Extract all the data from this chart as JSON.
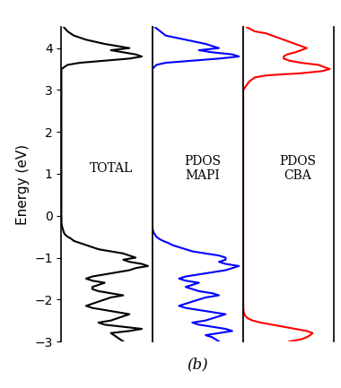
{
  "energy_range": [
    -3,
    4.5
  ],
  "yticks": [
    -3,
    -2,
    -1,
    0,
    1,
    2,
    3,
    4
  ],
  "ylabel": "Energy (eV)",
  "panel_labels": [
    "TOTAL",
    "PDOS\nMAPI",
    "PDOS\nCBA"
  ],
  "subtitle": "(b)",
  "colors": [
    "#000000",
    "#0000ff",
    "#ff0000"
  ],
  "linewidth": 1.5,
  "total_dos_energy": [
    -3.0,
    -2.9,
    -2.8,
    -2.75,
    -2.7,
    -2.65,
    -2.6,
    -2.55,
    -2.5,
    -2.45,
    -2.4,
    -2.35,
    -2.3,
    -2.25,
    -2.2,
    -2.15,
    -2.1,
    -2.05,
    -2.0,
    -1.95,
    -1.9,
    -1.85,
    -1.8,
    -1.75,
    -1.7,
    -1.65,
    -1.6,
    -1.55,
    -1.5,
    -1.45,
    -1.4,
    -1.35,
    -1.3,
    -1.25,
    -1.2,
    -1.15,
    -1.1,
    -1.05,
    -1.0,
    -0.95,
    -0.9,
    -0.85,
    -0.8,
    -0.75,
    -0.7,
    -0.65,
    -0.6,
    -0.55,
    -0.5,
    -0.45,
    -0.4,
    -0.35,
    -0.3,
    -0.25,
    -0.2,
    -0.15,
    -0.1,
    -0.05,
    0.0,
    0.05,
    0.1,
    0.15,
    0.2,
    0.5,
    1.0,
    1.5,
    2.0,
    2.5,
    3.0,
    3.5,
    3.6,
    3.65,
    3.7,
    3.75,
    3.8,
    3.85,
    3.9,
    3.95,
    4.0,
    4.05,
    4.1,
    4.2,
    4.3,
    4.4,
    4.5
  ],
  "total_dos_values": [
    5.0,
    4.5,
    4.0,
    5.5,
    6.5,
    5.0,
    3.5,
    3.0,
    4.0,
    4.5,
    5.0,
    5.5,
    4.5,
    3.5,
    2.5,
    2.0,
    2.5,
    3.0,
    3.5,
    4.0,
    5.0,
    4.0,
    3.0,
    2.5,
    2.5,
    3.0,
    3.5,
    2.5,
    2.0,
    2.5,
    3.5,
    4.5,
    5.5,
    6.0,
    7.0,
    6.5,
    5.5,
    5.0,
    6.0,
    5.5,
    5.0,
    4.0,
    3.0,
    2.5,
    2.0,
    1.5,
    1.0,
    0.8,
    0.5,
    0.3,
    0.2,
    0.15,
    0.1,
    0.05,
    0.02,
    0.01,
    0.01,
    0.01,
    0.0,
    0.0,
    0.0,
    0.0,
    0.0,
    0.0,
    0.0,
    0.0,
    0.0,
    0.0,
    0.0,
    0.0,
    0.5,
    1.5,
    3.5,
    5.5,
    6.5,
    6.0,
    5.0,
    4.0,
    5.5,
    4.5,
    3.5,
    2.0,
    1.0,
    0.5,
    0.2
  ],
  "mapi_dos_energy": [
    -3.0,
    -2.9,
    -2.85,
    -2.8,
    -2.75,
    -2.7,
    -2.65,
    -2.6,
    -2.55,
    -2.5,
    -2.45,
    -2.4,
    -2.35,
    -2.3,
    -2.25,
    -2.2,
    -2.15,
    -2.1,
    -2.05,
    -2.0,
    -1.95,
    -1.9,
    -1.85,
    -1.8,
    -1.75,
    -1.7,
    -1.65,
    -1.6,
    -1.55,
    -1.5,
    -1.45,
    -1.4,
    -1.35,
    -1.3,
    -1.25,
    -1.2,
    -1.15,
    -1.1,
    -1.05,
    -1.0,
    -0.95,
    -0.9,
    -0.85,
    -0.8,
    -0.75,
    -0.7,
    -0.65,
    -0.6,
    -0.55,
    -0.5,
    -0.45,
    -0.4,
    -0.35,
    -0.3,
    -0.25,
    -0.2,
    -0.15,
    -0.1,
    -0.05,
    0.0,
    0.05,
    0.1,
    0.5,
    1.0,
    1.5,
    2.0,
    2.5,
    3.0,
    3.5,
    3.6,
    3.65,
    3.7,
    3.75,
    3.8,
    3.85,
    3.9,
    3.95,
    4.0,
    4.1,
    4.2,
    4.3,
    4.5
  ],
  "mapi_dos_values": [
    5.0,
    4.5,
    4.0,
    5.0,
    6.0,
    5.5,
    4.5,
    3.5,
    3.0,
    4.0,
    4.5,
    5.0,
    5.5,
    4.5,
    3.5,
    2.5,
    2.0,
    2.5,
    3.0,
    3.5,
    4.0,
    5.0,
    4.5,
    3.5,
    3.0,
    2.5,
    3.0,
    3.5,
    2.5,
    2.0,
    2.5,
    3.5,
    4.5,
    5.5,
    6.0,
    6.5,
    5.5,
    5.0,
    5.5,
    5.5,
    5.0,
    4.0,
    3.0,
    2.5,
    2.0,
    1.5,
    1.2,
    0.8,
    0.5,
    0.3,
    0.2,
    0.1,
    0.05,
    0.02,
    0.01,
    0.01,
    0.0,
    0.0,
    0.0,
    0.0,
    0.0,
    0.0,
    0.0,
    0.0,
    0.0,
    0.0,
    0.0,
    0.0,
    0.0,
    0.3,
    1.0,
    3.0,
    5.0,
    6.5,
    6.0,
    4.5,
    3.5,
    5.0,
    4.0,
    2.5,
    1.0,
    0.2
  ],
  "cba_dos_energy": [
    -3.0,
    -2.95,
    -2.9,
    -2.85,
    -2.8,
    -2.75,
    -2.7,
    -2.65,
    -2.6,
    -2.55,
    -2.5,
    -2.45,
    -2.4,
    -2.35,
    -2.3,
    -2.25,
    -2.2,
    -2.15,
    -2.1,
    -2.05,
    -2.0,
    -1.5,
    -1.0,
    -0.5,
    -0.4,
    -0.3,
    -0.2,
    -0.1,
    0.0,
    0.5,
    1.0,
    1.5,
    2.0,
    2.5,
    3.0,
    3.2,
    3.3,
    3.35,
    3.4,
    3.45,
    3.5,
    3.55,
    3.6,
    3.65,
    3.7,
    3.75,
    3.8,
    3.85,
    3.9,
    3.95,
    4.0,
    4.05,
    4.1,
    4.15,
    4.2,
    4.25,
    4.3,
    4.35,
    4.4,
    4.5
  ],
  "cba_dos_values": [
    4.0,
    5.0,
    5.5,
    5.8,
    6.0,
    5.5,
    4.5,
    3.5,
    2.5,
    1.5,
    0.8,
    0.4,
    0.2,
    0.1,
    0.05,
    0.02,
    0.01,
    0.01,
    0.0,
    0.0,
    0.0,
    0.0,
    0.0,
    0.0,
    0.0,
    0.0,
    0.0,
    0.0,
    0.0,
    0.0,
    0.0,
    0.0,
    0.0,
    0.0,
    0.0,
    0.5,
    1.0,
    2.0,
    5.0,
    6.8,
    7.5,
    7.0,
    6.5,
    5.0,
    4.0,
    3.5,
    3.5,
    3.8,
    4.5,
    5.0,
    5.5,
    5.0,
    4.5,
    4.0,
    3.5,
    3.0,
    2.5,
    2.0,
    1.0,
    0.3
  ]
}
